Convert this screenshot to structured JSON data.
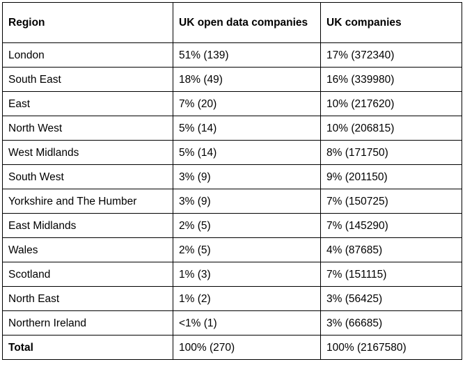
{
  "table": {
    "headers": [
      "Region",
      "UK open data companies",
      "UK companies"
    ],
    "rows": [
      [
        "London",
        "51% (139)",
        "17% (372340)"
      ],
      [
        "South East",
        "18% (49)",
        "16% (339980)"
      ],
      [
        "East",
        "7% (20)",
        "10% (217620)"
      ],
      [
        "North West",
        "5% (14)",
        "10% (206815)"
      ],
      [
        "West Midlands",
        "5% (14)",
        "8% (171750)"
      ],
      [
        "South West",
        "3% (9)",
        "9% (201150)"
      ],
      [
        "Yorkshire and The Humber",
        "3% (9)",
        "7% (150725)"
      ],
      [
        "East Midlands",
        "2% (5)",
        "7% (145290)"
      ],
      [
        "Wales",
        "2% (5)",
        "4% (87685)"
      ],
      [
        "Scotland",
        "1% (3)",
        "7% (151115)"
      ],
      [
        "North East",
        "1% (2)",
        "3% (56425)"
      ],
      [
        "Northern Ireland",
        "<1% (1)",
        "3% (66685)"
      ]
    ],
    "total": [
      "Total",
      "100% (270)",
      "100% (2167580)"
    ]
  }
}
